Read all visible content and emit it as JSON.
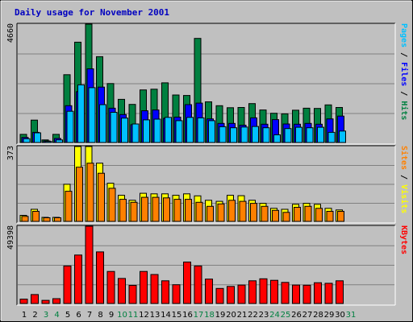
{
  "chart_data": {
    "type": "bar",
    "title": "Daily usage for November 2001",
    "x": [
      "1",
      "2",
      "3",
      "4",
      "5",
      "6",
      "7",
      "8",
      "9",
      "10",
      "11",
      "12",
      "13",
      "14",
      "15",
      "16",
      "17",
      "18",
      "19",
      "20",
      "21",
      "22",
      "23",
      "24",
      "25",
      "26",
      "27",
      "28",
      "29",
      "30",
      "31"
    ],
    "weekend_days": [
      "3",
      "4",
      "10",
      "11",
      "17",
      "18",
      "24",
      "25",
      "31"
    ],
    "colors": {
      "hits": "#008040",
      "files": "#0000ff",
      "pages": "#00c0ff",
      "visits": "#ffff00",
      "sites": "#ff8000",
      "kbytes": "#ff0000",
      "weekday_label": "#000000",
      "weekend_label": "#008040",
      "title": "#0000c0"
    },
    "panels": [
      {
        "max_label": "4660",
        "ylim": [
          0,
          4660
        ],
        "label_parts": [
          {
            "text": "Pages",
            "color": "#00c0ff"
          },
          {
            "text": " / ",
            "color": "#000000"
          },
          {
            "text": "Files",
            "color": "#0000ff"
          },
          {
            "text": " / ",
            "color": "#000000"
          },
          {
            "text": "Hits",
            "color": "#008040"
          }
        ],
        "series": [
          {
            "key": "hits",
            "values": [
              320,
              880,
              100,
              320,
              2670,
              3950,
              4660,
              3380,
              2320,
              1700,
              1500,
              2070,
              2100,
              2350,
              1870,
              1850,
              4100,
              1600,
              1450,
              1370,
              1380,
              1530,
              1280,
              1150,
              1130,
              1270,
              1350,
              1340,
              1480,
              1380,
              0
            ]
          },
          {
            "key": "files",
            "values": [
              200,
              400,
              60,
              160,
              1450,
              2000,
              2900,
              2180,
              1350,
              1100,
              700,
              1250,
              1280,
              950,
              1000,
              1490,
              1550,
              930,
              750,
              750,
              680,
              970,
              720,
              900,
              730,
              720,
              750,
              720,
              930,
              1040,
              0
            ]
          },
          {
            "key": "pages",
            "values": [
              150,
              380,
              40,
              100,
              1230,
              2270,
              2160,
              1490,
              1190,
              960,
              730,
              890,
              920,
              990,
              860,
              990,
              970,
              860,
              620,
              580,
              610,
              630,
              580,
              300,
              550,
              600,
              580,
              600,
              400,
              450,
              0
            ]
          }
        ]
      },
      {
        "max_label": "373",
        "ylim": [
          0,
          373
        ],
        "label_parts": [
          {
            "text": "Sites",
            "color": "#ff8000"
          },
          {
            "text": " / ",
            "color": "#000000"
          },
          {
            "text": "Visits",
            "color": "#ffff00"
          }
        ],
        "series": [
          {
            "key": "visits",
            "values": [
              30,
              60,
              20,
              20,
              185,
              373,
              373,
              290,
              190,
              130,
              105,
              140,
              137,
              137,
              130,
              137,
              127,
              105,
              100,
              130,
              128,
              105,
              90,
              65,
              60,
              85,
              90,
              85,
              65,
              57,
              0
            ]
          },
          {
            "key": "sites",
            "values": [
              25,
              50,
              18,
              18,
              150,
              270,
              290,
              240,
              165,
              110,
              95,
              120,
              120,
              117,
              110,
              110,
              95,
              75,
              87,
              105,
              100,
              90,
              75,
              55,
              45,
              70,
              75,
              65,
              50,
              50,
              0
            ]
          }
        ]
      },
      {
        "max_label": "49398",
        "ylim": [
          0,
          49398
        ],
        "label_parts": [
          {
            "text": "KBytes",
            "color": "#ff0000"
          }
        ],
        "series": [
          {
            "key": "kbytes",
            "values": [
              2800,
              5700,
              2000,
              3100,
              24000,
              31000,
              49398,
              33000,
              20500,
              16000,
              11600,
              20500,
              18500,
              14500,
              12000,
              26500,
              24000,
              15600,
              9600,
              10900,
              11800,
              14500,
              15800,
              14800,
              13500,
              11800,
              11700,
              13300,
              12900,
              14500,
              0
            ]
          }
        ]
      }
    ]
  }
}
